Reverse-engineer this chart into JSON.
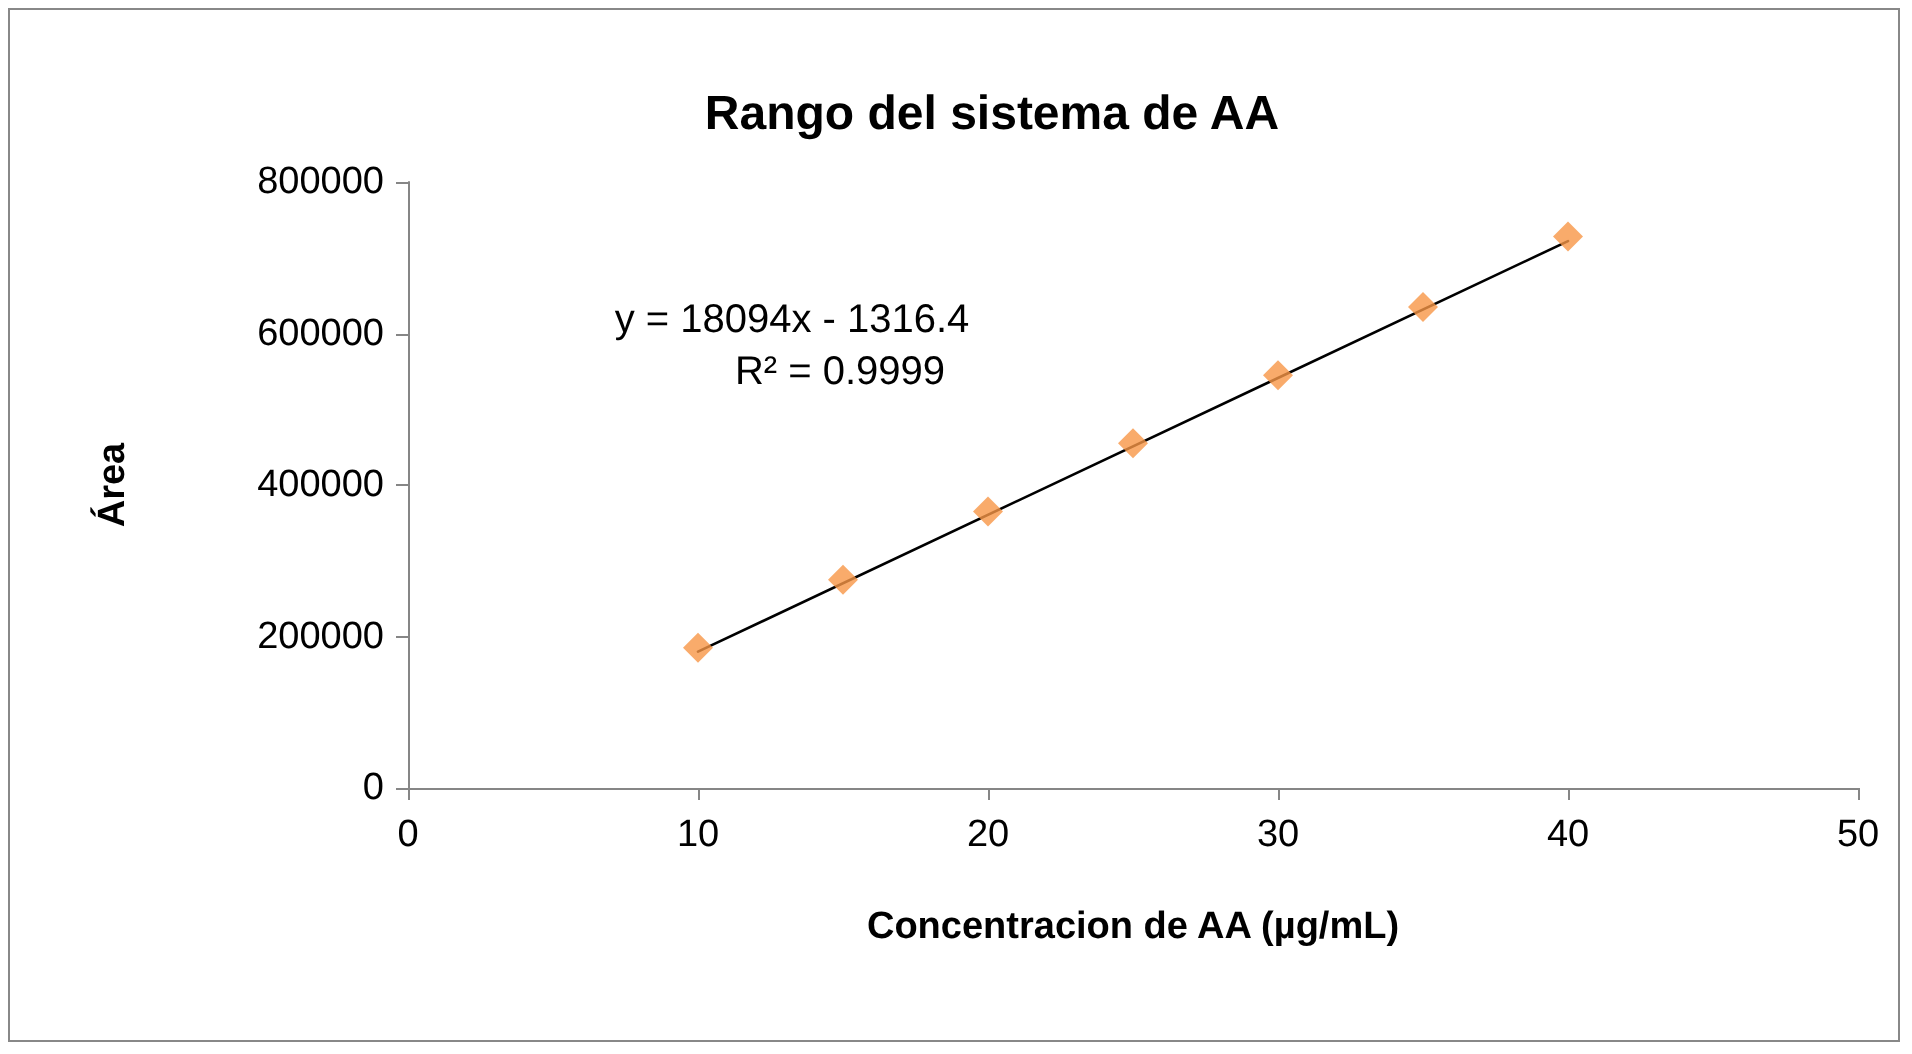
{
  "chart_data": {
    "type": "scatter",
    "title": "Rango del sistema de AA",
    "xlabel": "Concentracion de AA (µg/mL)",
    "ylabel": "Área",
    "annotations": [
      "y = 18094x - 1316.4",
      "R² = 0.9999"
    ],
    "series": [
      {
        "color": "#f79646",
        "x": [
          10,
          15,
          20,
          25,
          30,
          35,
          40
        ],
        "values": [
          185000,
          275000,
          365000,
          455000,
          545000,
          635000,
          728000
        ],
        "marker": "diamond"
      },
      {
        "type": "line",
        "color": "#000000",
        "x": [
          10,
          40
        ],
        "values": [
          180000,
          722000
        ],
        "marker": "none",
        "line_style": "solid"
      }
    ],
    "xlim": [
      0,
      50
    ],
    "xticks": [
      0,
      10,
      20,
      30,
      40,
      50
    ],
    "ylim": [
      0,
      800000
    ],
    "yticks": [
      0,
      200000,
      400000,
      600000,
      800000
    ],
    "grid": false
  }
}
